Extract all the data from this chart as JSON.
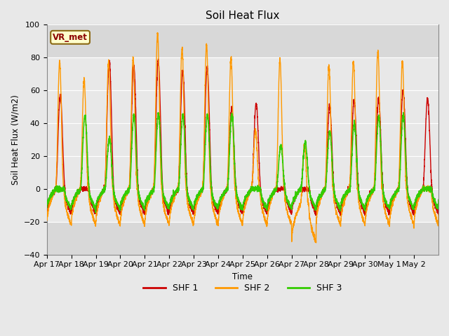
{
  "title": "Soil Heat Flux",
  "ylabel": "Soil Heat Flux (W/m2)",
  "xlabel": "Time",
  "legend_labels": [
    "SHF 1",
    "SHF 2",
    "SHF 3"
  ],
  "line_colors": [
    "#cc0000",
    "#ff9900",
    "#33cc00"
  ],
  "ylim": [
    -40,
    100
  ],
  "yticks": [
    -40,
    -20,
    0,
    20,
    40,
    60,
    80,
    100
  ],
  "xtick_labels": [
    "Apr 17",
    "Apr 18",
    "Apr 19",
    "Apr 20",
    "Apr 21",
    "Apr 22",
    "Apr 23",
    "Apr 24",
    "Apr 25",
    "Apr 26",
    "Apr 27",
    "Apr 28",
    "Apr 29",
    "Apr 30",
    "May 1",
    "May 2"
  ],
  "vr_met_label": "VR_met",
  "fig_bg": "#e8e8e8",
  "plot_bg": "#d8d8d8",
  "shaded_low": -20,
  "shaded_high": 80,
  "shaded_color": "#e8e8e8",
  "n_days": 16,
  "ppd": 288,
  "day_amps_shf1": [
    57,
    0,
    78,
    75,
    78,
    72,
    74,
    49,
    52,
    0,
    0,
    50,
    54,
    55,
    60,
    55
  ],
  "day_amps_shf2": [
    78,
    67,
    78,
    80,
    95,
    86,
    88,
    80,
    36,
    79,
    37,
    75,
    78,
    84,
    78,
    0
  ],
  "day_amps_shf3": [
    0,
    45,
    31,
    45,
    46,
    45,
    45,
    45,
    0,
    26,
    28,
    35,
    40,
    44,
    45,
    0
  ],
  "night_shf1": -15,
  "night_shf2": -22,
  "night_shf3": -12
}
